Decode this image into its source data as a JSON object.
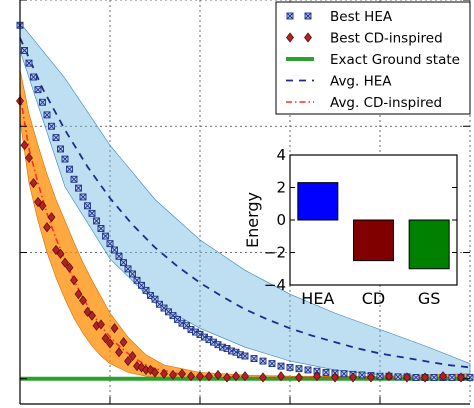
{
  "chart_data": [
    {
      "type": "line",
      "title": "",
      "xlabel": "",
      "ylabel": "",
      "xlim": [
        0,
        100
      ],
      "ylim": [
        -0.2,
        3.0
      ],
      "grid": true,
      "legend_position": "top-right",
      "bands": [
        {
          "name": "Best HEA",
          "color": "#6fb6e0",
          "x": [
            0,
            10,
            20,
            30,
            40,
            50,
            60,
            70,
            80,
            90,
            100
          ],
          "upper": [
            2.82,
            2.38,
            1.85,
            1.42,
            1.1,
            0.86,
            0.67,
            0.52,
            0.39,
            0.26,
            0.12
          ],
          "lower": [
            2.6,
            1.52,
            0.95,
            0.6,
            0.4,
            0.25,
            0.14,
            0.07,
            0.03,
            0.0,
            -0.01
          ]
        },
        {
          "name": "Best CD-inspired",
          "color": "#ff8c00",
          "x": [
            0,
            2,
            4,
            6,
            8,
            10,
            12,
            14,
            16,
            18,
            20,
            24,
            28,
            32,
            40,
            50,
            60,
            70,
            80,
            90,
            100
          ],
          "upper": [
            2.45,
            2.1,
            1.85,
            1.62,
            1.42,
            1.25,
            1.08,
            0.92,
            0.78,
            0.65,
            0.52,
            0.33,
            0.19,
            0.11,
            0.05,
            0.03,
            0.02,
            0.02,
            0.02,
            0.03,
            0.04
          ],
          "lower": [
            2.05,
            1.55,
            1.25,
            1.0,
            0.8,
            0.63,
            0.48,
            0.36,
            0.26,
            0.18,
            0.12,
            0.05,
            0.02,
            0.01,
            0.0,
            0.0,
            0.0,
            0.0,
            0.0,
            0.0,
            0.0
          ]
        }
      ],
      "series": [
        {
          "name": "Best HEA",
          "kind": "markers",
          "marker": "square-x",
          "color": "#1a2f8c",
          "x": [
            0,
            1,
            2,
            3,
            4,
            5,
            6,
            7,
            8,
            9,
            10,
            11,
            12,
            13,
            14,
            15,
            16,
            17,
            18,
            19,
            20,
            21,
            22,
            23,
            24,
            25,
            26,
            27,
            28,
            29,
            30,
            31,
            32,
            33,
            34,
            35,
            36,
            37,
            38,
            39,
            40,
            41,
            42,
            43,
            44,
            45,
            46,
            47,
            48,
            49,
            50,
            52,
            54,
            56,
            58,
            60,
            62,
            64,
            66,
            68,
            70,
            72,
            74,
            76,
            78,
            80,
            82,
            84,
            86,
            88,
            90,
            92,
            94,
            96,
            98,
            100
          ],
          "y": [
            2.8,
            2.6,
            2.5,
            2.39,
            2.29,
            2.19,
            2.09,
            2.0,
            1.91,
            1.82,
            1.74,
            1.66,
            1.58,
            1.51,
            1.44,
            1.37,
            1.31,
            1.25,
            1.19,
            1.13,
            1.07,
            1.02,
            0.97,
            0.92,
            0.87,
            0.83,
            0.78,
            0.74,
            0.7,
            0.66,
            0.63,
            0.59,
            0.56,
            0.53,
            0.5,
            0.47,
            0.44,
            0.42,
            0.39,
            0.37,
            0.35,
            0.33,
            0.31,
            0.29,
            0.27,
            0.25,
            0.24,
            0.22,
            0.21,
            0.19,
            0.18,
            0.16,
            0.14,
            0.12,
            0.1,
            0.09,
            0.08,
            0.07,
            0.06,
            0.05,
            0.045,
            0.04,
            0.035,
            0.03,
            0.025,
            0.02,
            0.02,
            0.015,
            0.015,
            0.01,
            0.01,
            0.01,
            0.01,
            0.01,
            0.01,
            0.01
          ]
        },
        {
          "name": "Best CD-inspired",
          "kind": "markers",
          "marker": "diamond",
          "color": "#b22222",
          "x": [
            0,
            1,
            2,
            3,
            4,
            5,
            6,
            7,
            8,
            9,
            10,
            11,
            12,
            13,
            14,
            15,
            16,
            17,
            18,
            19,
            20,
            21,
            22,
            23,
            24,
            25,
            26,
            27,
            28,
            29,
            30,
            32,
            34,
            36,
            38,
            40,
            42,
            44,
            46,
            48,
            50,
            54,
            58,
            62,
            66,
            70,
            74,
            78,
            82,
            86,
            90,
            94,
            98
          ],
          "y": [
            2.2,
            1.85,
            1.75,
            1.55,
            1.4,
            1.37,
            1.2,
            1.28,
            1.02,
            0.99,
            0.92,
            0.88,
            0.78,
            0.67,
            0.62,
            0.53,
            0.5,
            0.42,
            0.43,
            0.32,
            0.28,
            0.4,
            0.21,
            0.29,
            0.14,
            0.18,
            0.1,
            0.09,
            0.07,
            0.07,
            0.05,
            0.04,
            0.03,
            0.04,
            0.02,
            0.02,
            0.02,
            0.03,
            0.01,
            0.02,
            0.02,
            0.01,
            0.02,
            0.01,
            0.02,
            0.01,
            0.01,
            0.01,
            0.02,
            0.01,
            0.01,
            0.02,
            0.01
          ]
        },
        {
          "name": "Exact Ground state",
          "kind": "solid",
          "color": "#2ca02c",
          "x": [
            0,
            100
          ],
          "y": [
            0,
            0
          ]
        },
        {
          "name": "Avg. HEA",
          "kind": "dashed",
          "color": "#1f2a8c",
          "x": [
            0,
            5,
            10,
            15,
            20,
            25,
            30,
            35,
            40,
            45,
            50,
            55,
            60,
            65,
            70,
            75,
            80,
            85,
            90,
            95,
            100
          ],
          "y": [
            2.7,
            2.3,
            1.97,
            1.68,
            1.43,
            1.22,
            1.04,
            0.89,
            0.76,
            0.65,
            0.55,
            0.47,
            0.4,
            0.34,
            0.29,
            0.24,
            0.2,
            0.17,
            0.14,
            0.11,
            0.09
          ]
        },
        {
          "name": "Avg. CD-inspired",
          "kind": "dashdot",
          "color": "#ff2a2a",
          "x": [
            0,
            2,
            4,
            6,
            8,
            10,
            12,
            14,
            16,
            18,
            20,
            22,
            24,
            26,
            28,
            30,
            35,
            40,
            50,
            60,
            70,
            80,
            90,
            100
          ],
          "y": [
            2.25,
            1.82,
            1.55,
            1.31,
            1.11,
            0.94,
            0.78,
            0.64,
            0.52,
            0.42,
            0.33,
            0.26,
            0.2,
            0.15,
            0.11,
            0.08,
            0.04,
            0.02,
            0.01,
            0.01,
            0.01,
            0.01,
            0.01,
            0.01
          ]
        }
      ]
    },
    {
      "type": "bar",
      "title": "",
      "xlabel": "",
      "ylabel": "Energy",
      "categories": [
        "HEA",
        "CD",
        "GS"
      ],
      "values": [
        2.3,
        -2.5,
        -3.0
      ],
      "colors": [
        "#0000ff",
        "#800000",
        "#008000"
      ],
      "ylim": [
        -4,
        4
      ],
      "yticks": [
        "4",
        "2",
        "0",
        "−2",
        "−4"
      ]
    }
  ]
}
